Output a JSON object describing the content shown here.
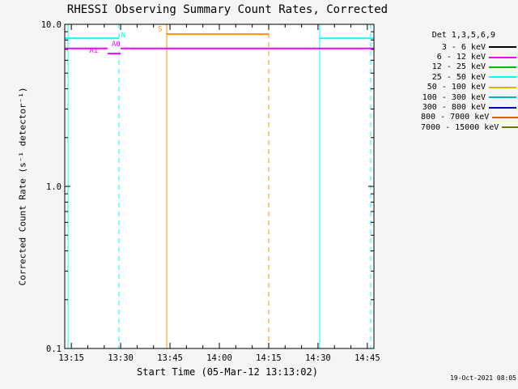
{
  "title": "RHESSI Observing Summary Count Rates, Corrected",
  "timestamp": "19-Oct-2021 08:05",
  "x_axis": {
    "label": "Start Time (05-Mar-12 13:13:02)",
    "ticks": [
      {
        "label": "13:15",
        "min": 2
      },
      {
        "label": "13:30",
        "min": 17
      },
      {
        "label": "13:45",
        "min": 32
      },
      {
        "label": "14:00",
        "min": 47
      },
      {
        "label": "14:15",
        "min": 62
      },
      {
        "label": "14:30",
        "min": 77
      },
      {
        "label": "14:45",
        "min": 92
      }
    ]
  },
  "y_axis": {
    "label": "Corrected Count Rate (s⁻¹ detector⁻¹)",
    "ticks": [
      {
        "label": "10.0",
        "value": 10
      },
      {
        "label": "1.0",
        "value": 1
      },
      {
        "label": "0.1",
        "value": 0.1
      }
    ]
  },
  "legend": {
    "header": "Det 1,3,5,6,9",
    "rows": [
      {
        "label": "3 - 6 keV",
        "color": "#000000"
      },
      {
        "label": "6 - 12 keV",
        "color": "#ff00ff"
      },
      {
        "label": "12 - 25 keV",
        "color": "#00bb00"
      },
      {
        "label": "25 - 50 keV",
        "color": "#00ffff"
      },
      {
        "label": "50 - 100 keV",
        "color": "#d2b800"
      },
      {
        "label": "100 - 300 keV",
        "color": "#00b4b4"
      },
      {
        "label": "300 - 800 keV",
        "color": "#0000c8"
      },
      {
        "label": "800 - 7000 keV",
        "color": "#d26900"
      },
      {
        "label": "7000 - 15000 keV",
        "color": "#667800"
      }
    ]
  },
  "chart_data": {
    "type": "line",
    "title": "RHESSI Observing Summary Count Rates, Corrected",
    "xlabel": "Start Time (05-Mar-12 13:13:02)",
    "ylabel": "Corrected Count Rate (s⁻¹ detector⁻¹)",
    "yscale": "log",
    "ylim": [
      0.1,
      10
    ],
    "x_start_time": "13:13:02",
    "x_range_minutes": [
      0,
      94
    ],
    "minor_tick_step_min": 5,
    "grid": false,
    "legend_position": "right-outside",
    "flag_segments": [
      {
        "name": "night",
        "color": "#00ffff",
        "value": 8.2,
        "start_min": 0,
        "end_min": 16.5
      },
      {
        "name": "night",
        "color": "#00ffff",
        "value": 8.2,
        "start_min": 77.5,
        "end_min": 94
      },
      {
        "name": "saa",
        "color": "#ff9000",
        "value": 8.7,
        "start_min": 31,
        "end_min": 62
      },
      {
        "name": "attenuator-a0",
        "color": "#ff00ff",
        "value": 7.1,
        "start_min": 0,
        "end_min": 13
      },
      {
        "name": "attenuator-a1",
        "color": "#ff00ff",
        "value": 6.6,
        "start_min": 13,
        "end_min": 17
      },
      {
        "name": "attenuator-a0",
        "color": "#ff00ff",
        "value": 7.1,
        "start_min": 17,
        "end_min": 94
      }
    ],
    "flag_labels": [
      {
        "text": "N",
        "min": 17.8,
        "value": 8.6,
        "color": "#00ffff"
      },
      {
        "text": "S",
        "min": 29,
        "value": 9.4,
        "color": "#ff9000"
      },
      {
        "text": "A1",
        "min": 8.8,
        "value": 6.9,
        "color": "#ff00ff"
      },
      {
        "text": "A0",
        "min": 15.6,
        "value": 7.6,
        "color": "#ff00ff"
      }
    ],
    "event_lines": [
      {
        "name": "night-start",
        "min": 1,
        "color": "#00ffff",
        "style": "solid"
      },
      {
        "name": "night-end",
        "min": 16.5,
        "color": "#00ffff",
        "style": "dashed"
      },
      {
        "name": "saa-start",
        "min": 31,
        "color": "#ff9000",
        "style": "solid"
      },
      {
        "name": "saa-end",
        "min": 62,
        "color": "#ff9000",
        "style": "dashed"
      },
      {
        "name": "night-start",
        "min": 77.5,
        "color": "#00ffff",
        "style": "solid"
      },
      {
        "name": "night-end",
        "min": 93,
        "color": "#00ffff",
        "style": "dashed"
      }
    ]
  }
}
